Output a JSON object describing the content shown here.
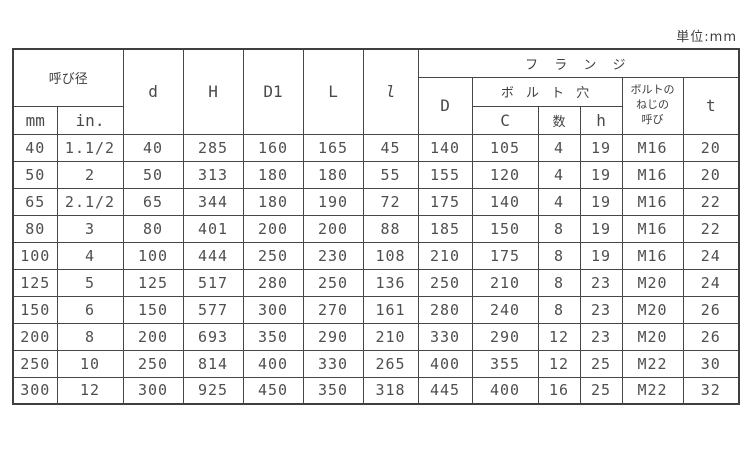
{
  "unit_label": "単位:mm",
  "colors": {
    "background": "#ffffff",
    "line": "#474747",
    "text": "#4a4a4a"
  },
  "table": {
    "header": {
      "nominal_diameter": "呼び径",
      "mm": "mm",
      "inch": "in.",
      "d": "d",
      "H": "H",
      "D1": "D1",
      "L": "L",
      "l": "l",
      "flange": "フ ラ ン ジ",
      "D": "D",
      "bolt_holes": "ボ ル ト 穴",
      "C": "C",
      "count": "数",
      "h": "h",
      "bolt_thread": "ボルトの\nねじの\n呼び",
      "t": "t"
    },
    "rows": [
      [
        "40",
        "1.1/2",
        "40",
        "285",
        "160",
        "165",
        "45",
        "140",
        "105",
        "4",
        "19",
        "M16",
        "20"
      ],
      [
        "50",
        "2",
        "50",
        "313",
        "180",
        "180",
        "55",
        "155",
        "120",
        "4",
        "19",
        "M16",
        "20"
      ],
      [
        "65",
        "2.1/2",
        "65",
        "344",
        "180",
        "190",
        "72",
        "175",
        "140",
        "4",
        "19",
        "M16",
        "22"
      ],
      [
        "80",
        "3",
        "80",
        "401",
        "200",
        "200",
        "88",
        "185",
        "150",
        "8",
        "19",
        "M16",
        "22"
      ],
      [
        "100",
        "4",
        "100",
        "444",
        "250",
        "230",
        "108",
        "210",
        "175",
        "8",
        "19",
        "M16",
        "24"
      ],
      [
        "125",
        "5",
        "125",
        "517",
        "280",
        "250",
        "136",
        "250",
        "210",
        "8",
        "23",
        "M20",
        "24"
      ],
      [
        "150",
        "6",
        "150",
        "577",
        "300",
        "270",
        "161",
        "280",
        "240",
        "8",
        "23",
        "M20",
        "26"
      ],
      [
        "200",
        "8",
        "200",
        "693",
        "350",
        "290",
        "210",
        "330",
        "290",
        "12",
        "23",
        "M20",
        "26"
      ],
      [
        "250",
        "10",
        "250",
        "814",
        "400",
        "330",
        "265",
        "400",
        "355",
        "12",
        "25",
        "M22",
        "30"
      ],
      [
        "300",
        "12",
        "300",
        "925",
        "450",
        "350",
        "318",
        "445",
        "400",
        "16",
        "25",
        "M22",
        "32"
      ]
    ]
  }
}
